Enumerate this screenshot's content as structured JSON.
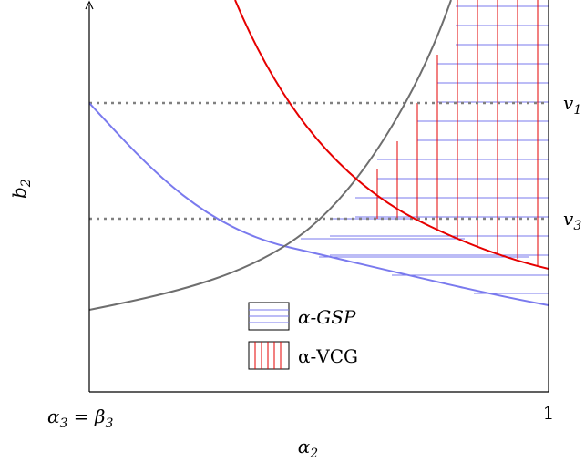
{
  "axes": {
    "x_label": "α",
    "x_label_sub": "2",
    "y_label": "b",
    "y_label_sub": "2",
    "x_tick_left_a": "α",
    "x_tick_left_a_sub": "3",
    "x_tick_left_eq": " = ",
    "x_tick_left_b": "β",
    "x_tick_left_b_sub": "3",
    "x_tick_right": "1"
  },
  "levels": {
    "v1_name": "v",
    "v1_sub": "1",
    "v3_name": "v",
    "v3_sub": "3"
  },
  "legend": [
    {
      "label": "α-GSP",
      "pattern": "horizontal-lines",
      "color": "#8080ff"
    },
    {
      "label": "α-VCG",
      "pattern": "vertical-lines",
      "color": "#e00000"
    }
  ],
  "colors": {
    "axis": "#000000",
    "gsp": "#7a7aee",
    "vcg": "#e60000",
    "gray_curve": "#6e6e6e",
    "dotted": "#808080"
  }
}
